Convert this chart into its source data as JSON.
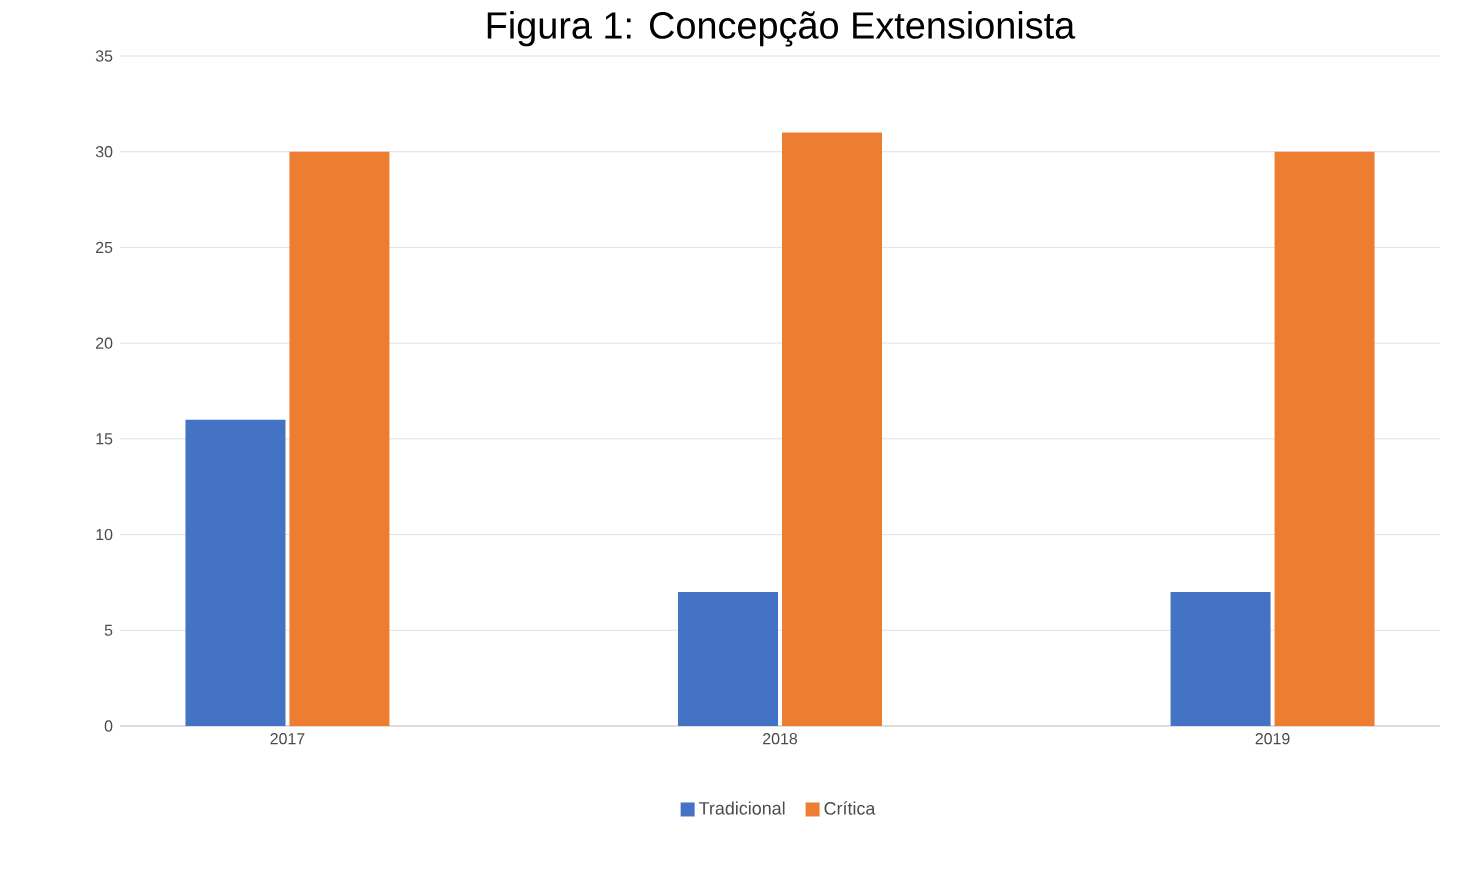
{
  "chart_data": {
    "type": "bar",
    "title": "Figura 1: Concepção Extensionista",
    "categories": [
      "2017",
      "2018",
      "2019"
    ],
    "series": [
      {
        "name": "Tradicional",
        "color": "#4472c4",
        "values": [
          16,
          7,
          7
        ]
      },
      {
        "name": "Crítica",
        "color": "#ed7d31",
        "values": [
          30,
          31,
          30
        ]
      }
    ],
    "ylim": [
      0,
      35
    ],
    "yticks": [
      0,
      5,
      10,
      15,
      20,
      25,
      30,
      35
    ],
    "grid": "y",
    "legend": "bottom"
  }
}
